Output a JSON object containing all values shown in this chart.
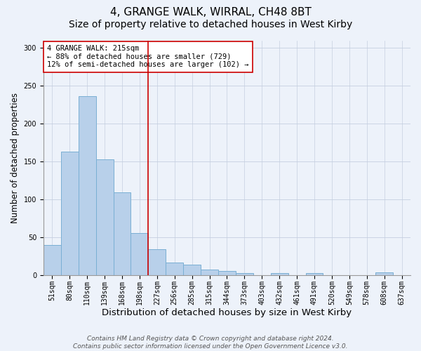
{
  "title1": "4, GRANGE WALK, WIRRAL, CH48 8BT",
  "title2": "Size of property relative to detached houses in West Kirby",
  "xlabel": "Distribution of detached houses by size in West Kirby",
  "ylabel": "Number of detached properties",
  "categories": [
    "51sqm",
    "80sqm",
    "110sqm",
    "139sqm",
    "168sqm",
    "198sqm",
    "227sqm",
    "256sqm",
    "285sqm",
    "315sqm",
    "344sqm",
    "373sqm",
    "403sqm",
    "432sqm",
    "461sqm",
    "491sqm",
    "520sqm",
    "549sqm",
    "578sqm",
    "608sqm",
    "637sqm"
  ],
  "values": [
    40,
    163,
    236,
    153,
    110,
    56,
    35,
    17,
    14,
    8,
    6,
    3,
    0,
    3,
    0,
    3,
    0,
    0,
    0,
    4,
    0
  ],
  "bar_color": "#b8d0ea",
  "bar_edgecolor": "#7aafd4",
  "vline_color": "#cc0000",
  "vline_x_index": 6,
  "annotation_text": "4 GRANGE WALK: 215sqm\n← 88% of detached houses are smaller (729)\n12% of semi-detached houses are larger (102) →",
  "annotation_box_color": "#ffffff",
  "annotation_box_edgecolor": "#cc0000",
  "ylim": [
    0,
    310
  ],
  "yticks": [
    0,
    50,
    100,
    150,
    200,
    250,
    300
  ],
  "footnote": "Contains HM Land Registry data © Crown copyright and database right 2024.\nContains public sector information licensed under the Open Government Licence v3.0.",
  "title1_fontsize": 11,
  "title2_fontsize": 10,
  "xlabel_fontsize": 9.5,
  "ylabel_fontsize": 8.5,
  "tick_fontsize": 7,
  "annotation_fontsize": 7.5,
  "footnote_fontsize": 6.5,
  "background_color": "#edf2fa"
}
